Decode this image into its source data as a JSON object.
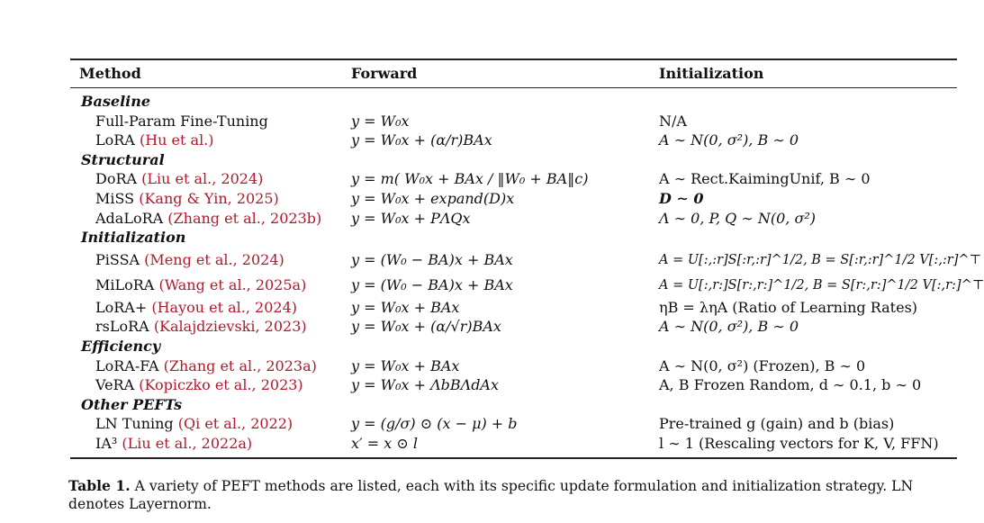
{
  "table": {
    "headers": [
      "Method",
      "Forward",
      "Initialization"
    ],
    "groups": [
      {
        "category": "Baseline",
        "rows": [
          {
            "method": "Full-Param Fine-Tuning",
            "citation": "",
            "forward": "y = W₀x",
            "init": "N/A"
          },
          {
            "method": "LoRA",
            "citation": "(Hu et al.)",
            "forward": "y = W₀x + (α/r)BAx",
            "init": "A ∼ N(0, σ²), B ∼ 0"
          }
        ]
      },
      {
        "category": "Structural",
        "rows": [
          {
            "method": "DoRA",
            "citation": "(Liu et al., 2024)",
            "forward": "y = m( W₀x + BAx / ‖W₀ + BA‖c)",
            "init": "A ∼ Rect.KaimingUnif,  B ∼ 0"
          },
          {
            "method": "MiSS",
            "citation": "(Kang & Yin, 2025)",
            "forward": "y = W₀x + expand(D)x",
            "init": "D ∼ 0"
          },
          {
            "method": "AdaLoRA",
            "citation": "(Zhang et al., 2023b)",
            "forward": "y = W₀x + PΛQx",
            "init": "Λ ∼ 0,  P, Q ∼ N(0, σ²)"
          }
        ]
      },
      {
        "category": "Initialization",
        "rows": [
          {
            "method": "PiSSA",
            "citation": "(Meng et al., 2024)",
            "forward": "y = (W₀ − BA)x + BAx",
            "init": "A = U[:,:r]S[:r,:r]^1/2,  B = S[:r,:r]^1/2 V[:,:r]^⊤"
          },
          {
            "method": "MiLoRA",
            "citation": "(Wang et al., 2025a)",
            "forward": "y = (W₀ − BA)x + BAx",
            "init": "A = U[:,r:]S[r:,r:]^1/2,  B = S[r:,r:]^1/2 V[:,r:]^⊤"
          },
          {
            "method": "LoRA+",
            "citation": "(Hayou et al., 2024)",
            "forward": "y = W₀x + BAx",
            "init": "ηB = ληA (Ratio of Learning Rates)"
          },
          {
            "method": "rsLoRA",
            "citation": "(Kalajdzievski, 2023)",
            "forward": "y = W₀x + (α/√r)BAx",
            "init": "A ∼ N(0, σ²), B ∼ 0"
          }
        ]
      },
      {
        "category": "Efficiency",
        "rows": [
          {
            "method": "LoRA-FA",
            "citation": "(Zhang et al., 2023a)",
            "forward": "y = W₀x + BAx",
            "init": "A ∼ N(0, σ²) (Frozen), B ∼ 0"
          },
          {
            "method": "VeRA",
            "citation": "(Kopiczko et al., 2023)",
            "forward": "y = W₀x + ΛbBΛdAx",
            "init": "A, B Frozen Random, d ∼ 0.1, b ∼ 0"
          }
        ]
      },
      {
        "category": "Other PEFTs",
        "rows": [
          {
            "method": "LN Tuning",
            "citation": "(Qi et al., 2022)",
            "forward": "y = (g/σ) ⊙ (x − μ) + b",
            "init": "Pre-trained g (gain) and b (bias)"
          },
          {
            "method": "IA³",
            "citation": "(Liu et al., 2022a)",
            "forward": "x′ = x ⊙ l",
            "init": "l ∼ 1 (Rescaling vectors for K, V, FFN)"
          }
        ]
      }
    ]
  },
  "caption": {
    "label": "Table 1.",
    "text": "A variety of PEFT methods are listed, each with its specific update formulation and initialization strategy. LN denotes Layernorm."
  },
  "colors": {
    "citation": "#b5172b",
    "text": "#111111",
    "rule": "#222222"
  }
}
